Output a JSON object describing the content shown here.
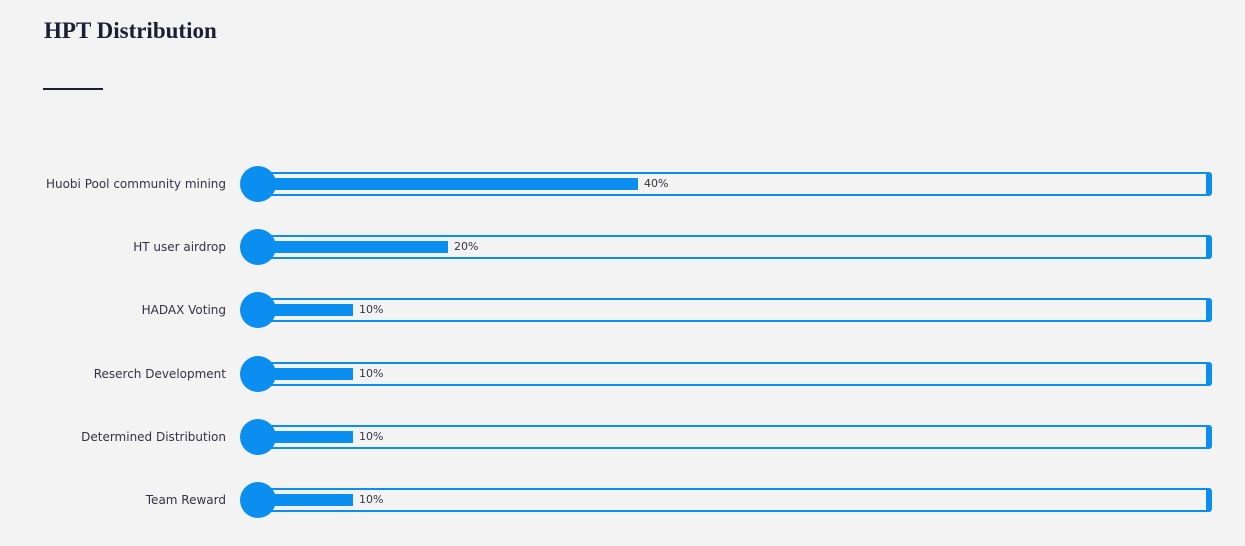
{
  "title": "HPT Distribution",
  "chart_data": {
    "type": "bar",
    "title": "HPT Distribution",
    "categories": [
      "Huobi Pool community mining",
      "HT user airdrop",
      "HADAX Voting",
      "Reserch Development",
      "Determined Distribution",
      "Team Reward"
    ],
    "values": [
      40,
      20,
      10,
      10,
      10,
      10
    ],
    "value_labels": [
      "40%",
      "20%",
      "10%",
      "10%",
      "10%",
      "10%"
    ],
    "xlim": [
      0,
      100
    ],
    "orientation": "horizontal",
    "grid": false,
    "legend": "none",
    "bar_color": "#0a8ef0"
  }
}
